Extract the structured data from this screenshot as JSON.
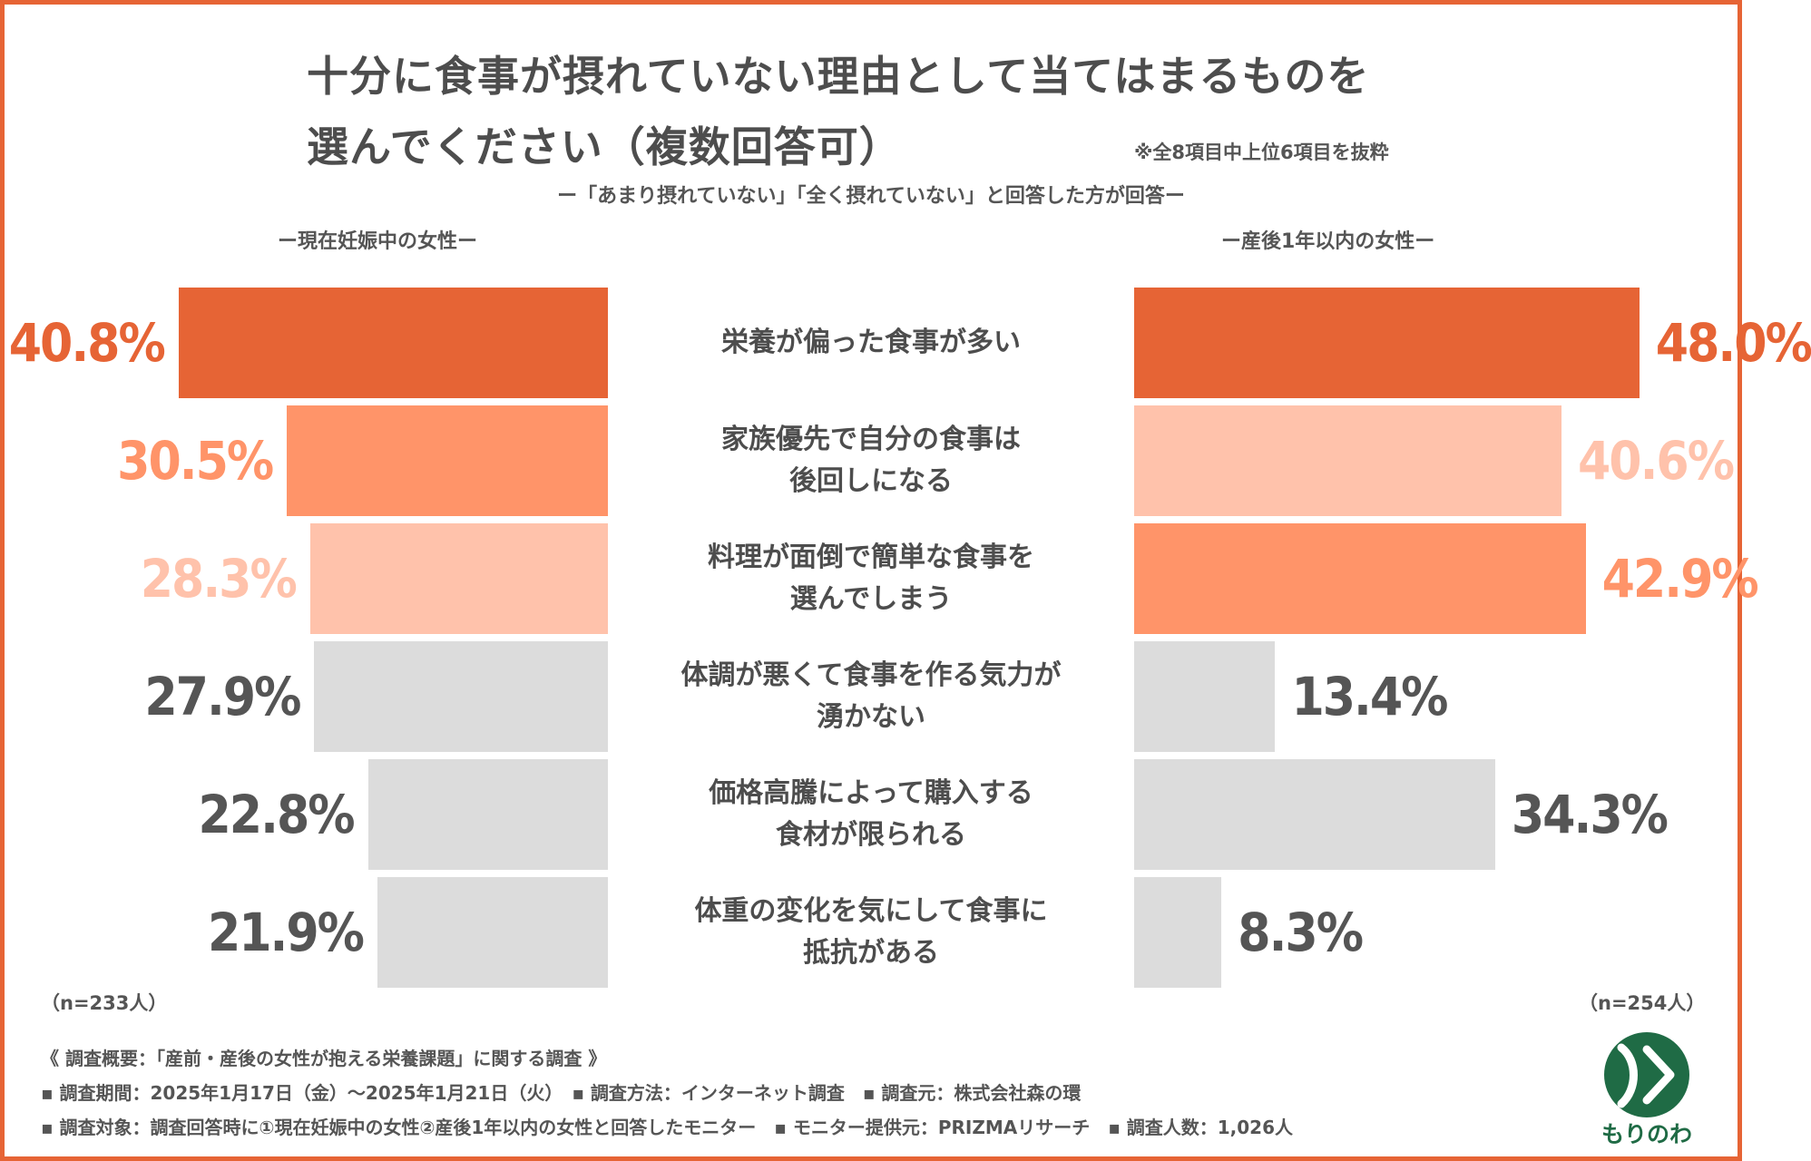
{
  "title": {
    "line1": "十分に食事が摂れていない理由として当てはまるものを",
    "line2": "選んでください（複数回答可）"
  },
  "note": "※全8項目中上位6項目を抜粋",
  "subtitle": "ー「あまり摂れていない」「全く摂れていない」と回答した方が回答ー",
  "colors": {
    "accent_dark": "#e66435",
    "accent_mid": "#ff9469",
    "accent_light": "#ffc2ab",
    "neutral_bar": "#dcdcdc",
    "neutral_text": "#555555",
    "logo_green": "#1f6b45"
  },
  "chart_data": {
    "type": "bar",
    "orientation": "horizontal-butterfly",
    "categories": [
      "栄養が偏った食事が多い",
      "家族優先で自分の食事は後回しになる",
      "料理が面倒で簡単な食事を選んでしまう",
      "体調が悪くて食事を作る気力が湧かない",
      "価格高騰によって購入する食材が限られる",
      "体重の変化を気にして食事に抵抗がある"
    ],
    "category_lines": [
      [
        "栄養が偏った食事が多い"
      ],
      [
        "家族優先で自分の食事は",
        "後回しになる"
      ],
      [
        "料理が面倒で簡単な食事を",
        "選んでしまう"
      ],
      [
        "体調が悪くて食事を作る気力が",
        "湧かない"
      ],
      [
        "価格高騰によって購入する",
        "食材が限られる"
      ],
      [
        "体重の変化を気にして食事に",
        "抵抗がある"
      ]
    ],
    "unit": "%",
    "xlim": [
      0,
      50
    ],
    "series": [
      {
        "name": "ー現在妊娠中の女性ー",
        "n_label": "（n=233人）",
        "side": "left",
        "values": [
          40.8,
          30.5,
          28.3,
          27.9,
          22.8,
          21.9
        ],
        "labels": [
          "40.8%",
          "30.5%",
          "28.3%",
          "27.9%",
          "22.8%",
          "21.9%"
        ],
        "rank_colors": [
          "#e66435",
          "#ff9469",
          "#ffc2ab",
          "#dcdcdc",
          "#dcdcdc",
          "#dcdcdc"
        ]
      },
      {
        "name": "ー産後1年以内の女性ー",
        "n_label": "（n=254人）",
        "side": "right",
        "values": [
          48.0,
          40.6,
          42.9,
          13.4,
          34.3,
          8.3
        ],
        "labels": [
          "48.0%",
          "40.6%",
          "42.9%",
          "13.4%",
          "34.3%",
          "8.3%"
        ],
        "rank_colors": [
          "#e66435",
          "#ffc2ab",
          "#ff9469",
          "#dcdcdc",
          "#dcdcdc",
          "#dcdcdc"
        ]
      }
    ]
  },
  "footer": {
    "line1": "《 調査概要：「産前・産後の女性が抱える栄養課題」に関する調査 》",
    "line2": "▪ 調査期間：2025年1月17日（金）〜2025年1月21日（火）　▪ 調査方法：インターネット調査　▪ 調査元：株式会社森の環",
    "line3": "▪ 調査対象：調査回答時に①現在妊娠中の女性②産後1年以内の女性と回答したモニター　▪ モニター提供元：PRIZMAリサーチ　▪ 調査人数：1,026人"
  },
  "logo": {
    "text": "もりのわ",
    "icon": "morinowa-leaf-logo-icon"
  }
}
